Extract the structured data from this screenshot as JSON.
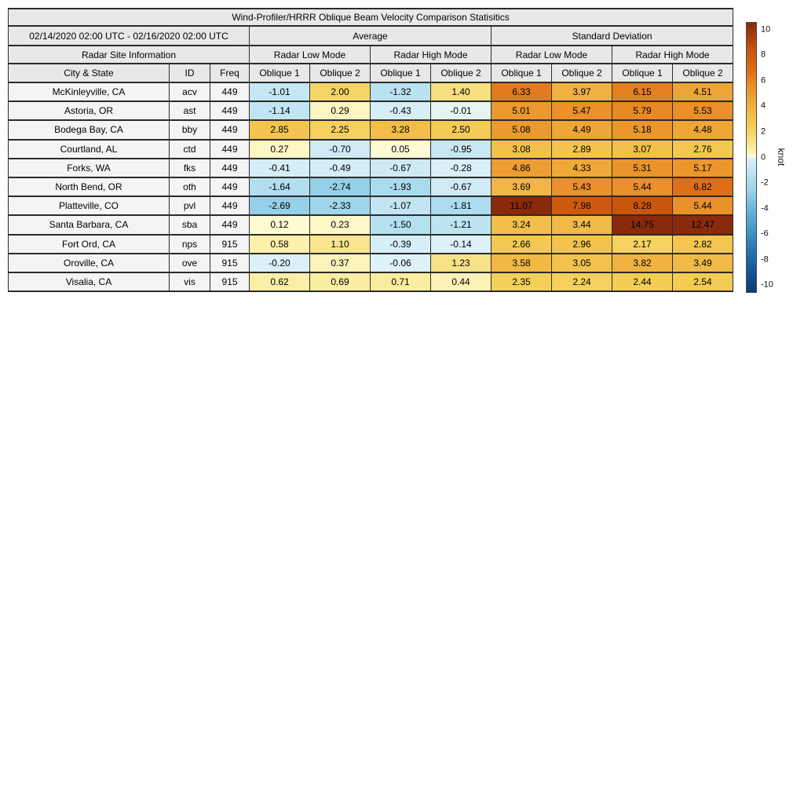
{
  "chart_data": {
    "type": "table",
    "title": "Wind-Profiler/HRRR Oblique Beam Velocity Comparison Statisitics",
    "header": {
      "date_range": "02/14/2020 02:00 UTC - 02/16/2020 02:00 UTC",
      "average_label": "Average",
      "std_label": "Standard Deviation",
      "site_info_label": "Radar Site Information",
      "mode_labels": [
        "Radar Low Mode",
        "Radar High Mode",
        "Radar Low Mode",
        "Radar High Mode"
      ],
      "city_label": "City & State",
      "id_label": "ID",
      "freq_label": "Freq",
      "oblique_labels": [
        "Oblique 1",
        "Oblique 2",
        "Oblique 1",
        "Oblique 2",
        "Oblique 1",
        "Oblique 2",
        "Oblique 1",
        "Oblique 2"
      ]
    },
    "rows": [
      {
        "city": "McKinleyville, CA",
        "id": "acv",
        "freq": "449",
        "values": [
          "-1.01",
          "2.00",
          "-1.32",
          "1.40",
          "6.33",
          "3.97",
          "6.15",
          "4.51"
        ]
      },
      {
        "city": "Astoria, OR",
        "id": "ast",
        "freq": "449",
        "values": [
          "-1.14",
          "0.29",
          "-0.43",
          "-0.01",
          "5.01",
          "5.47",
          "5.79",
          "5.53"
        ]
      },
      {
        "city": "Bodega Bay, CA",
        "id": "bby",
        "freq": "449",
        "values": [
          "2.85",
          "2.25",
          "3.28",
          "2.50",
          "5.08",
          "4.49",
          "5.18",
          "4.48"
        ]
      },
      {
        "city": "Courtland, AL",
        "id": "ctd",
        "freq": "449",
        "values": [
          "0.27",
          "-0.70",
          "0.05",
          "-0.95",
          "3.08",
          "2.89",
          "3.07",
          "2.76"
        ]
      },
      {
        "city": "Forks, WA",
        "id": "fks",
        "freq": "449",
        "values": [
          "-0.41",
          "-0.49",
          "-0.67",
          "-0.28",
          "4.86",
          "4.33",
          "5.31",
          "5.17"
        ]
      },
      {
        "city": "North Bend, OR",
        "id": "oth",
        "freq": "449",
        "values": [
          "-1.64",
          "-2.74",
          "-1.93",
          "-0.67",
          "3.69",
          "5.43",
          "5.44",
          "6.82"
        ]
      },
      {
        "city": "Platteville, CO",
        "id": "pvl",
        "freq": "449",
        "values": [
          "-2.69",
          "-2.33",
          "-1.07",
          "-1.81",
          "11.07",
          "7.98",
          "8.28",
          "5.44"
        ]
      },
      {
        "city": "Santa Barbara, CA",
        "id": "sba",
        "freq": "449",
        "values": [
          "0.12",
          "0.23",
          "-1.50",
          "-1.21",
          "3.24",
          "3.44",
          "14.75",
          "12.47"
        ]
      },
      {
        "city": "Fort Ord, CA",
        "id": "nps",
        "freq": "915",
        "values": [
          "0.58",
          "1.10",
          "-0.39",
          "-0.14",
          "2.66",
          "2.96",
          "2.17",
          "2.82"
        ]
      },
      {
        "city": "Oroville, CA",
        "id": "ove",
        "freq": "915",
        "values": [
          "-0.20",
          "0.37",
          "-0.06",
          "1.23",
          "3.58",
          "3.05",
          "3.82",
          "3.49"
        ]
      },
      {
        "city": "Visalia, CA",
        "id": "vis",
        "freq": "915",
        "values": [
          "0.62",
          "0.69",
          "0.71",
          "0.44",
          "2.35",
          "2.24",
          "2.44",
          "2.54"
        ]
      }
    ],
    "colorbar": {
      "label": "knot",
      "ticks": [
        "10",
        "8",
        "6",
        "4",
        "2",
        "0",
        "-2",
        "-4",
        "-6",
        "-8",
        "-10"
      ],
      "vmin": -10.6,
      "vmax": 10.6,
      "stops": [
        {
          "v": -10.6,
          "c": "#0c3b73"
        },
        {
          "v": -8.5,
          "c": "#175e9e"
        },
        {
          "v": -7.0,
          "c": "#2a7cb5"
        },
        {
          "v": -5.5,
          "c": "#469cc9"
        },
        {
          "v": -4.0,
          "c": "#6cb8da"
        },
        {
          "v": -2.5,
          "c": "#9cd4ea"
        },
        {
          "v": -1.5,
          "c": "#b5e0f0"
        },
        {
          "v": -0.7,
          "c": "#cfeaf5"
        },
        {
          "v": -0.02,
          "c": "#dff3f9"
        },
        {
          "v": 0.02,
          "c": "#fffcd9"
        },
        {
          "v": 0.7,
          "c": "#fbeda0"
        },
        {
          "v": 1.5,
          "c": "#f7dd7b"
        },
        {
          "v": 2.5,
          "c": "#f4cc55"
        },
        {
          "v": 4.0,
          "c": "#f0b03e"
        },
        {
          "v": 5.5,
          "c": "#ea9029"
        },
        {
          "v": 7.0,
          "c": "#dd6a14"
        },
        {
          "v": 8.5,
          "c": "#c6520c"
        },
        {
          "v": 10.6,
          "c": "#8a2a0c"
        }
      ]
    }
  }
}
